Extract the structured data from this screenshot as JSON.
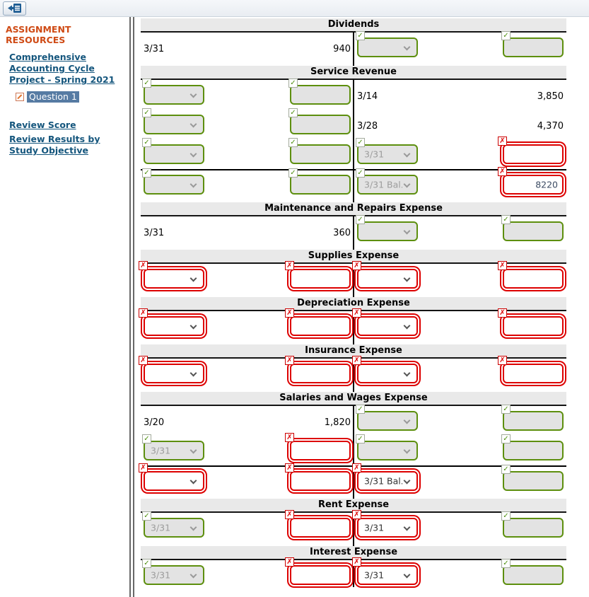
{
  "topbar": {
    "collapse_button_tooltip": "Hide Assignment Resources"
  },
  "sidebar": {
    "heading": "ASSIGNMENT RESOURCES",
    "assignment_link": "Comprehensive Accounting Cycle Project - Spring 2021",
    "question_label": "Question 1",
    "links": [
      "Review Score",
      "Review Results by Study Objective"
    ]
  },
  "colors": {
    "correct_border": "#5d8f0e",
    "incorrect_border": "#dd0000",
    "link_blue": "#15567d",
    "heading_orange": "#cf4a14",
    "question_highlight": "#567ba3"
  },
  "ledger": {
    "accounts": [
      {
        "title": "Dividends",
        "rows": [
          {
            "cells": [
              {
                "kind": "text",
                "value": "3/31"
              },
              {
                "kind": "text",
                "value": "940"
              },
              {
                "kind": "select",
                "status": "correct",
                "value": ""
              },
              {
                "kind": "input",
                "status": "correct",
                "value": ""
              }
            ]
          }
        ]
      },
      {
        "title": "Service Revenue",
        "rows": [
          {
            "cells": [
              {
                "kind": "select",
                "status": "correct",
                "value": ""
              },
              {
                "kind": "input",
                "status": "correct",
                "value": ""
              },
              {
                "kind": "text",
                "value": "3/14"
              },
              {
                "kind": "text",
                "value": "3,850"
              }
            ]
          },
          {
            "cells": [
              {
                "kind": "select",
                "status": "correct",
                "value": ""
              },
              {
                "kind": "input",
                "status": "correct",
                "value": ""
              },
              {
                "kind": "text",
                "value": "3/28"
              },
              {
                "kind": "text",
                "value": "4,370"
              }
            ]
          },
          {
            "cells": [
              {
                "kind": "select",
                "status": "correct",
                "value": ""
              },
              {
                "kind": "input",
                "status": "correct",
                "value": ""
              },
              {
                "kind": "select",
                "status": "correct",
                "value": "3/31"
              },
              {
                "kind": "input",
                "status": "incorrect",
                "value": ""
              }
            ]
          },
          {
            "balance_line": true,
            "cells": [
              {
                "kind": "select",
                "status": "correct",
                "value": ""
              },
              {
                "kind": "input",
                "status": "correct",
                "value": ""
              },
              {
                "kind": "select",
                "status": "correct",
                "value": "3/31 Bal."
              },
              {
                "kind": "input",
                "status": "incorrect",
                "value": "8220"
              }
            ]
          }
        ]
      },
      {
        "title": "Maintenance and Repairs Expense",
        "rows": [
          {
            "cells": [
              {
                "kind": "text",
                "value": "3/31"
              },
              {
                "kind": "text",
                "value": "360"
              },
              {
                "kind": "select",
                "status": "correct",
                "value": ""
              },
              {
                "kind": "input",
                "status": "correct",
                "value": ""
              }
            ]
          }
        ]
      },
      {
        "title": "Supplies Expense",
        "rows": [
          {
            "cells": [
              {
                "kind": "select",
                "status": "incorrect",
                "value": ""
              },
              {
                "kind": "input",
                "status": "incorrect",
                "value": ""
              },
              {
                "kind": "select",
                "status": "incorrect",
                "value": ""
              },
              {
                "kind": "input",
                "status": "incorrect",
                "value": ""
              }
            ]
          }
        ]
      },
      {
        "title": "Depreciation Expense",
        "rows": [
          {
            "cells": [
              {
                "kind": "select",
                "status": "incorrect",
                "value": ""
              },
              {
                "kind": "input",
                "status": "incorrect",
                "value": ""
              },
              {
                "kind": "select",
                "status": "incorrect",
                "value": ""
              },
              {
                "kind": "input",
                "status": "incorrect",
                "value": ""
              }
            ]
          }
        ]
      },
      {
        "title": "Insurance Expense",
        "rows": [
          {
            "cells": [
              {
                "kind": "select",
                "status": "incorrect",
                "value": ""
              },
              {
                "kind": "input",
                "status": "incorrect",
                "value": ""
              },
              {
                "kind": "select",
                "status": "incorrect",
                "value": ""
              },
              {
                "kind": "input",
                "status": "incorrect",
                "value": ""
              }
            ]
          }
        ]
      },
      {
        "title": "Salaries and Wages Expense",
        "rows": [
          {
            "cells": [
              {
                "kind": "text",
                "value": "3/20"
              },
              {
                "kind": "text",
                "value": "1,820"
              },
              {
                "kind": "select",
                "status": "correct",
                "value": ""
              },
              {
                "kind": "input",
                "status": "correct",
                "value": ""
              }
            ]
          },
          {
            "cells": [
              {
                "kind": "select",
                "status": "correct",
                "value": "3/31"
              },
              {
                "kind": "input",
                "status": "incorrect",
                "value": ""
              },
              {
                "kind": "select",
                "status": "correct",
                "value": ""
              },
              {
                "kind": "input",
                "status": "correct",
                "value": ""
              }
            ]
          },
          {
            "balance_line": true,
            "cells": [
              {
                "kind": "select",
                "status": "incorrect",
                "value": ""
              },
              {
                "kind": "input",
                "status": "incorrect",
                "value": ""
              },
              {
                "kind": "select",
                "status": "incorrect",
                "value": "3/31 Bal."
              },
              {
                "kind": "input",
                "status": "correct",
                "value": ""
              }
            ]
          }
        ]
      },
      {
        "title": "Rent Expense",
        "rows": [
          {
            "cells": [
              {
                "kind": "select",
                "status": "correct",
                "value": "3/31"
              },
              {
                "kind": "input",
                "status": "incorrect",
                "value": ""
              },
              {
                "kind": "select",
                "status": "incorrect",
                "value": "3/31"
              },
              {
                "kind": "input",
                "status": "correct",
                "value": ""
              }
            ]
          }
        ]
      },
      {
        "title": "Interest Expense",
        "rows": [
          {
            "cells": [
              {
                "kind": "select",
                "status": "correct",
                "value": "3/31"
              },
              {
                "kind": "input",
                "status": "incorrect",
                "value": ""
              },
              {
                "kind": "select",
                "status": "incorrect",
                "value": "3/31"
              },
              {
                "kind": "input",
                "status": "correct",
                "value": ""
              }
            ]
          }
        ]
      }
    ]
  }
}
